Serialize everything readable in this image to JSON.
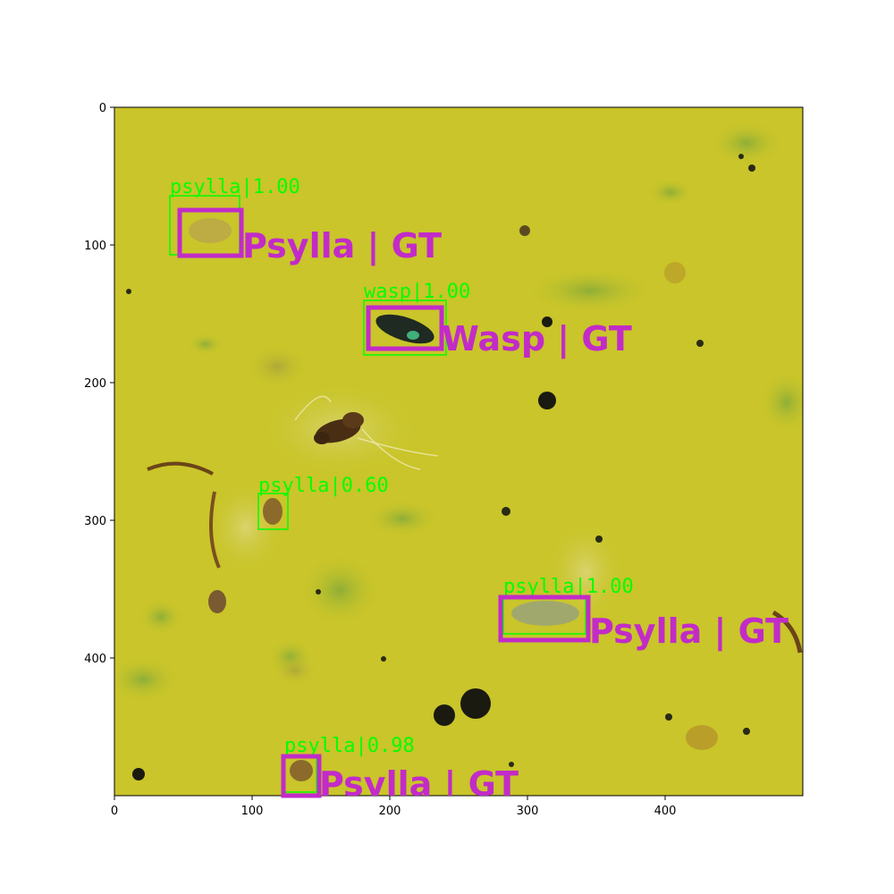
{
  "image": {
    "description_free": true,
    "background_color": "#c9c52a",
    "frame_color": "#000000"
  },
  "axes": {
    "x_ticks": [
      "0",
      "100",
      "200",
      "300",
      "400"
    ],
    "y_ticks": [
      "0",
      "100",
      "200",
      "300",
      "400"
    ]
  },
  "colors": {
    "prediction": "#00ff00",
    "ground_truth": "#c22bc8"
  },
  "detections": [
    {
      "pred_label": "psylla|1.00",
      "gt_label": "Psylla | GT"
    },
    {
      "pred_label": "wasp|1.00",
      "gt_label": "Wasp | GT"
    },
    {
      "pred_label": "psylla|0.60",
      "gt_label": ""
    },
    {
      "pred_label": "psylla|1.00",
      "gt_label": "Psylla | GT"
    },
    {
      "pred_label": "psylla|0.98",
      "gt_label": "Psylla | GT"
    }
  ]
}
